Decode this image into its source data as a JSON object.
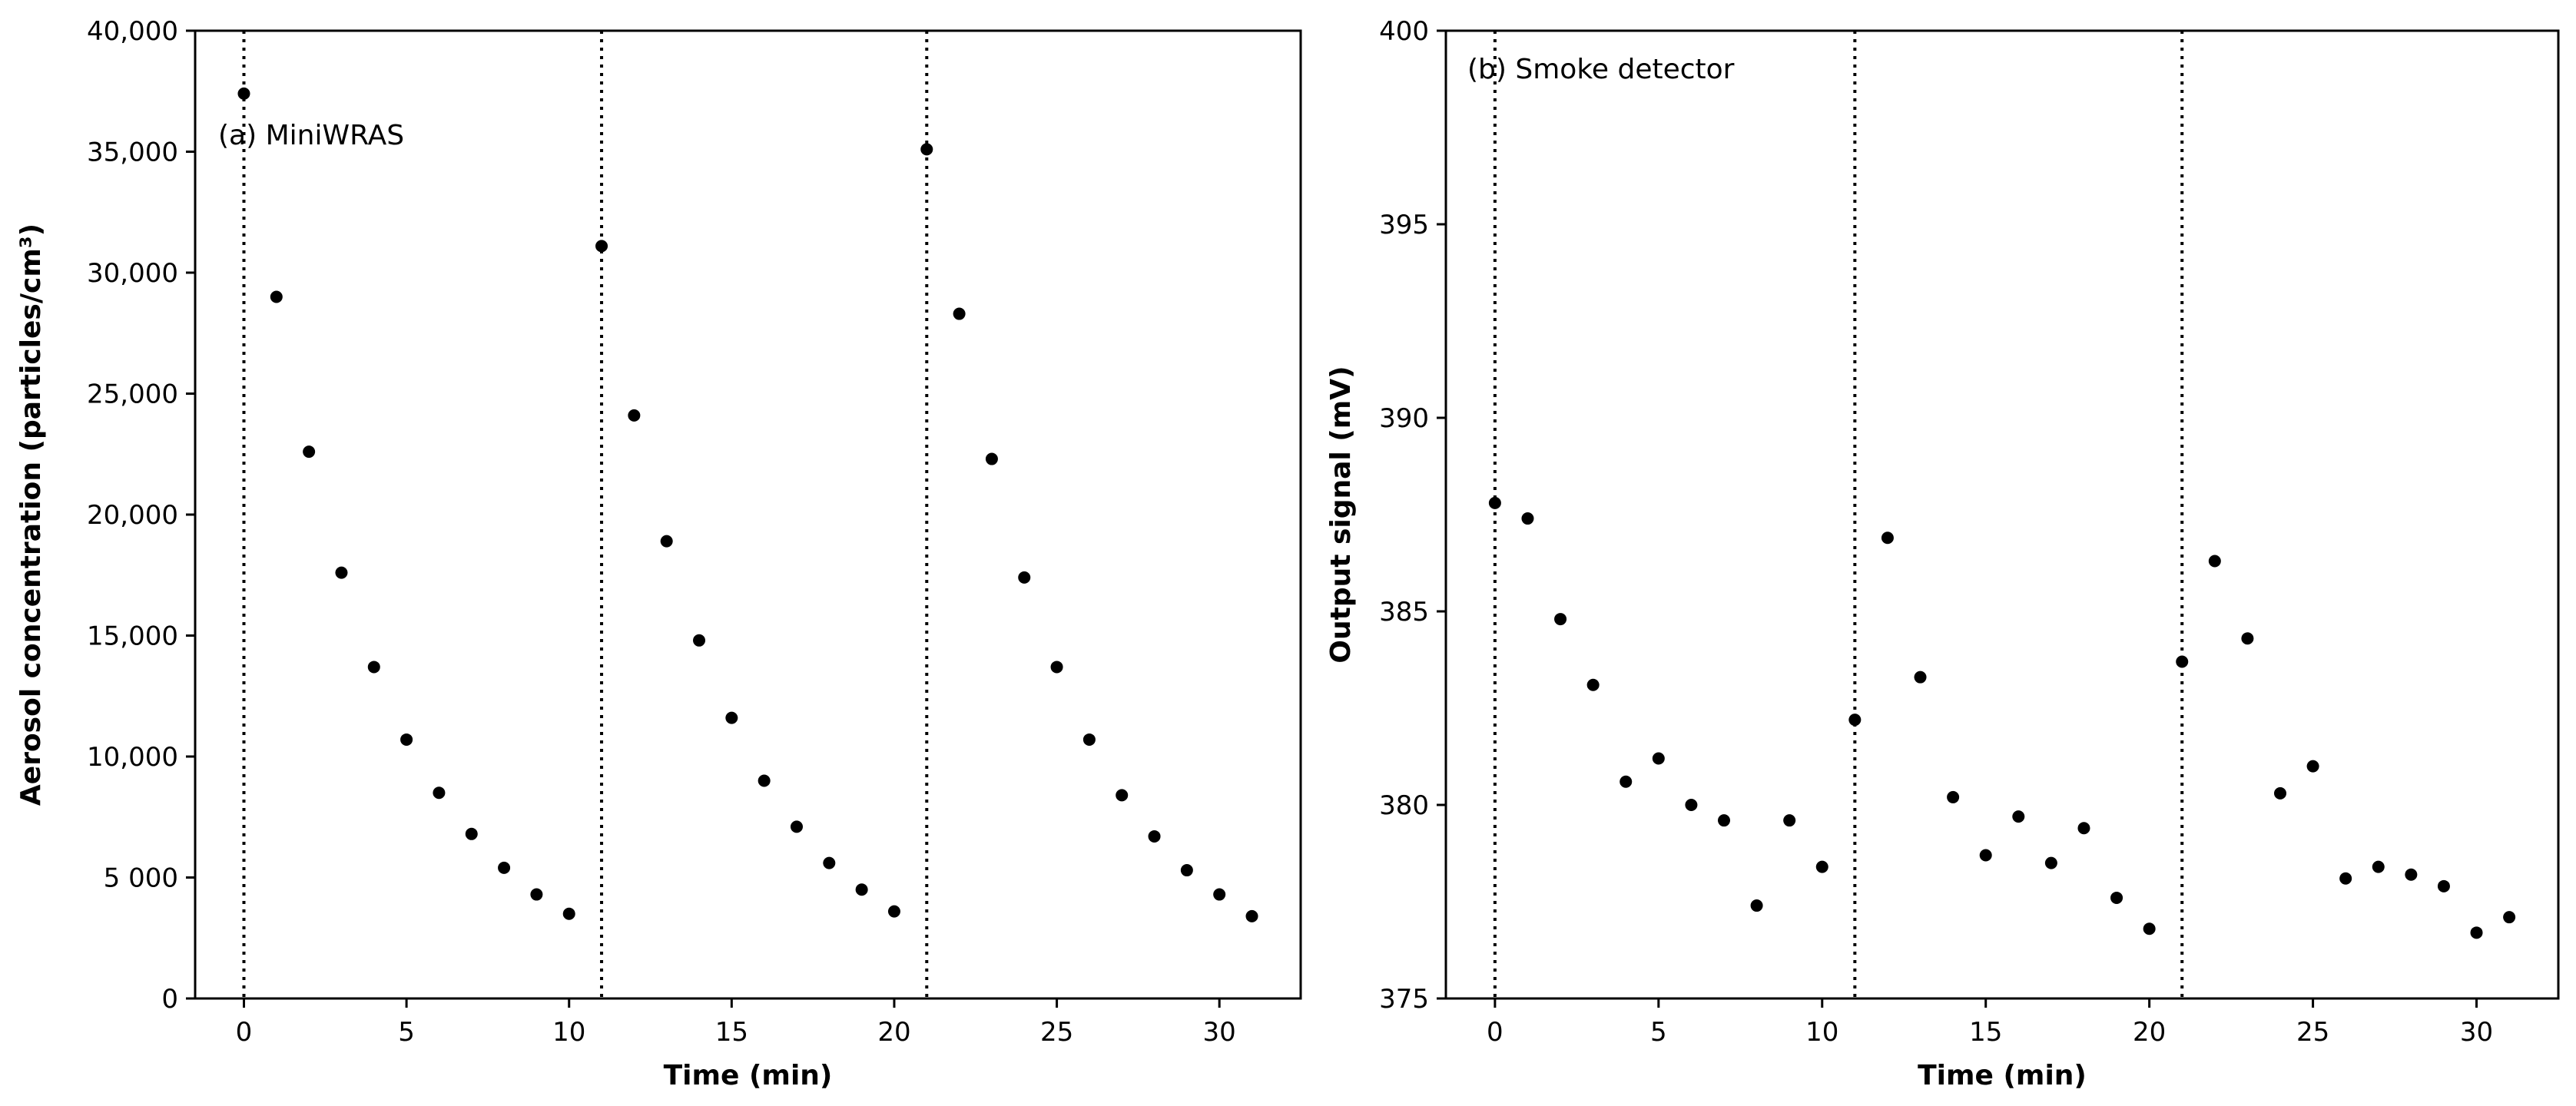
{
  "chart_data": [
    {
      "type": "scatter",
      "annotation": "(a) MiniWRAS",
      "xlabel": "Time (min)",
      "ylabel": "Aerosol concentration (particles/cm³)",
      "xlim": [
        -1.5,
        32.5
      ],
      "ylim": [
        0,
        40000
      ],
      "xticks": [
        0,
        5,
        10,
        15,
        20,
        25,
        30
      ],
      "yticks": [
        0,
        5000,
        10000,
        15000,
        20000,
        25000,
        30000,
        35000,
        40000
      ],
      "yticklabels": [
        "0",
        "5 000",
        "10,000",
        "15,000",
        "20,000",
        "25,000",
        "30,000",
        "35,000",
        "40,000"
      ],
      "vlines": [
        0,
        11,
        21
      ],
      "marker_color": "#000000",
      "points": [
        [
          0,
          37400
        ],
        [
          1,
          29000
        ],
        [
          2,
          22600
        ],
        [
          3,
          17600
        ],
        [
          4,
          13700
        ],
        [
          5,
          10700
        ],
        [
          6,
          8500
        ],
        [
          7,
          6800
        ],
        [
          8,
          5400
        ],
        [
          9,
          4300
        ],
        [
          10,
          3500
        ],
        [
          11,
          31100
        ],
        [
          12,
          24100
        ],
        [
          13,
          18900
        ],
        [
          14,
          14800
        ],
        [
          15,
          11600
        ],
        [
          16,
          9000
        ],
        [
          17,
          7100
        ],
        [
          18,
          5600
        ],
        [
          19,
          4500
        ],
        [
          20,
          3600
        ],
        [
          21,
          35100
        ],
        [
          22,
          28300
        ],
        [
          23,
          22300
        ],
        [
          24,
          17400
        ],
        [
          25,
          13700
        ],
        [
          26,
          10700
        ],
        [
          27,
          8400
        ],
        [
          28,
          6700
        ],
        [
          29,
          5300
        ],
        [
          30,
          4300
        ],
        [
          31,
          3400
        ]
      ]
    },
    {
      "type": "scatter",
      "annotation": "(b) Smoke detector",
      "xlabel": "Time (min)",
      "ylabel": "Output signal (mV)",
      "xlim": [
        -1.5,
        32.5
      ],
      "ylim": [
        375,
        400
      ],
      "xticks": [
        0,
        5,
        10,
        15,
        20,
        25,
        30
      ],
      "yticks": [
        375,
        380,
        385,
        390,
        395,
        400
      ],
      "yticklabels": [
        "375",
        "380",
        "385",
        "390",
        "395",
        "400"
      ],
      "vlines": [
        0,
        11,
        21
      ],
      "marker_color": "#000000",
      "points": [
        [
          0,
          387.8
        ],
        [
          1,
          387.4
        ],
        [
          2,
          384.8
        ],
        [
          3,
          383.1
        ],
        [
          4,
          380.6
        ],
        [
          5,
          381.2
        ],
        [
          6,
          380.0
        ],
        [
          7,
          379.6
        ],
        [
          8,
          377.4
        ],
        [
          9,
          379.6
        ],
        [
          10,
          378.4
        ],
        [
          11,
          382.2
        ],
        [
          12,
          386.9
        ],
        [
          13,
          383.3
        ],
        [
          14,
          380.2
        ],
        [
          15,
          378.7
        ],
        [
          16,
          379.7
        ],
        [
          17,
          378.5
        ],
        [
          18,
          379.4
        ],
        [
          19,
          377.6
        ],
        [
          20,
          376.8
        ],
        [
          21,
          383.7
        ],
        [
          22,
          386.3
        ],
        [
          23,
          384.3
        ],
        [
          24,
          380.3
        ],
        [
          25,
          381.0
        ],
        [
          26,
          378.1
        ],
        [
          27,
          378.4
        ],
        [
          28,
          378.2
        ],
        [
          29,
          377.9
        ],
        [
          30,
          376.7
        ],
        [
          31,
          377.1
        ]
      ]
    }
  ]
}
